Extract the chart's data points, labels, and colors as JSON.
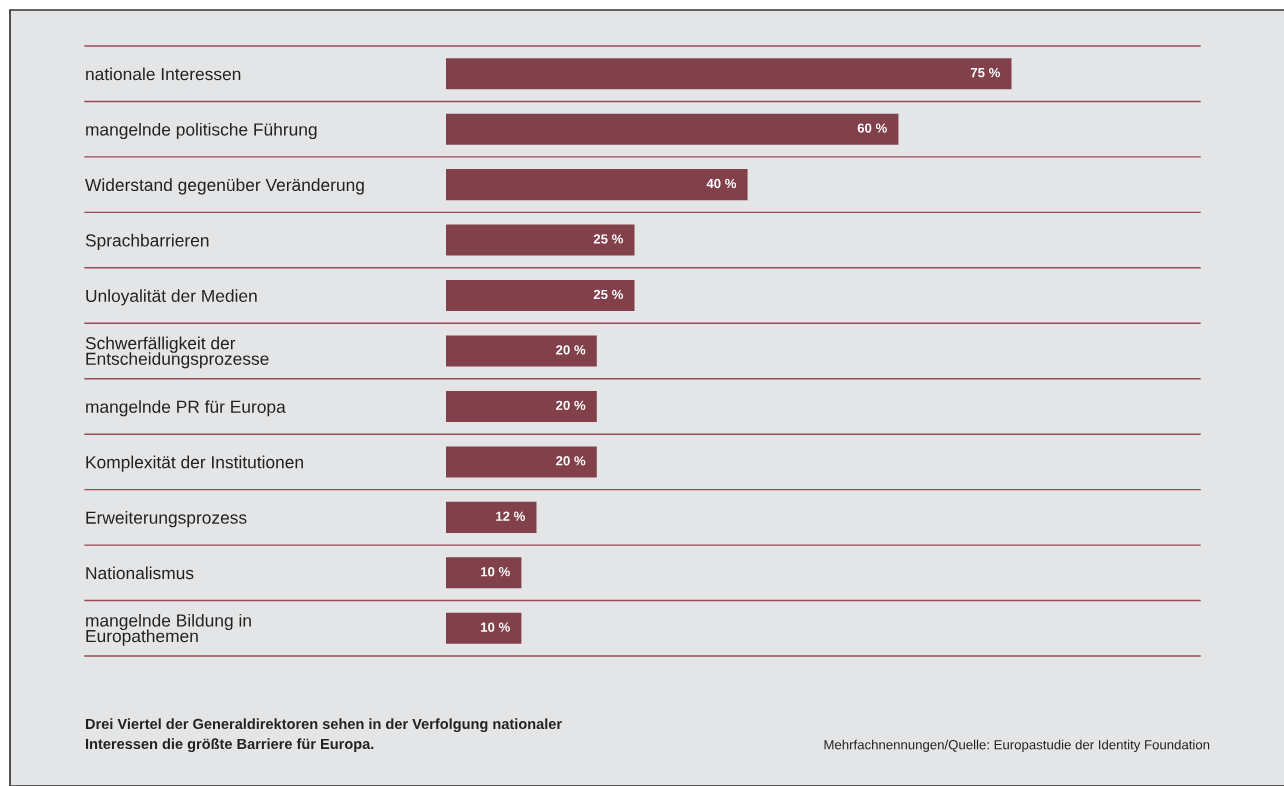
{
  "chart_data": {
    "type": "bar",
    "orientation": "horizontal",
    "categories": [
      "nationale Interessen",
      "mangelnde politische Führung",
      "Widerstand gegenüber Veränderung",
      "Sprachbarrieren",
      "Unloyalität der Medien",
      "Schwerfälligkeit der\nEntscheidungsprozesse",
      "mangelnde PR für Europa",
      "Komplexität der Institutionen",
      "Erweiterungsprozess",
      "Nationalismus",
      "mangelnde Bildung in\nEuropathemen"
    ],
    "values": [
      75,
      60,
      40,
      25,
      25,
      20,
      20,
      20,
      12,
      10,
      10
    ],
    "value_labels": [
      "75 %",
      "60 %",
      "40 %",
      "25 %",
      "25 %",
      "20 %",
      "20 %",
      "20 %",
      "12 %",
      "10 %",
      "10 %"
    ],
    "color": "#81404a",
    "xlim": [
      0,
      100
    ],
    "tick_labels": "y",
    "grid": "y",
    "annotations": [
      "Drei Viertel der Generaldirektoren sehen in der Verfolgung nationaler\nInteressen die größte Barriere für Europa.",
      "Mehrfachnennungen/Quelle: Europastudie der Identity Foundation"
    ]
  }
}
